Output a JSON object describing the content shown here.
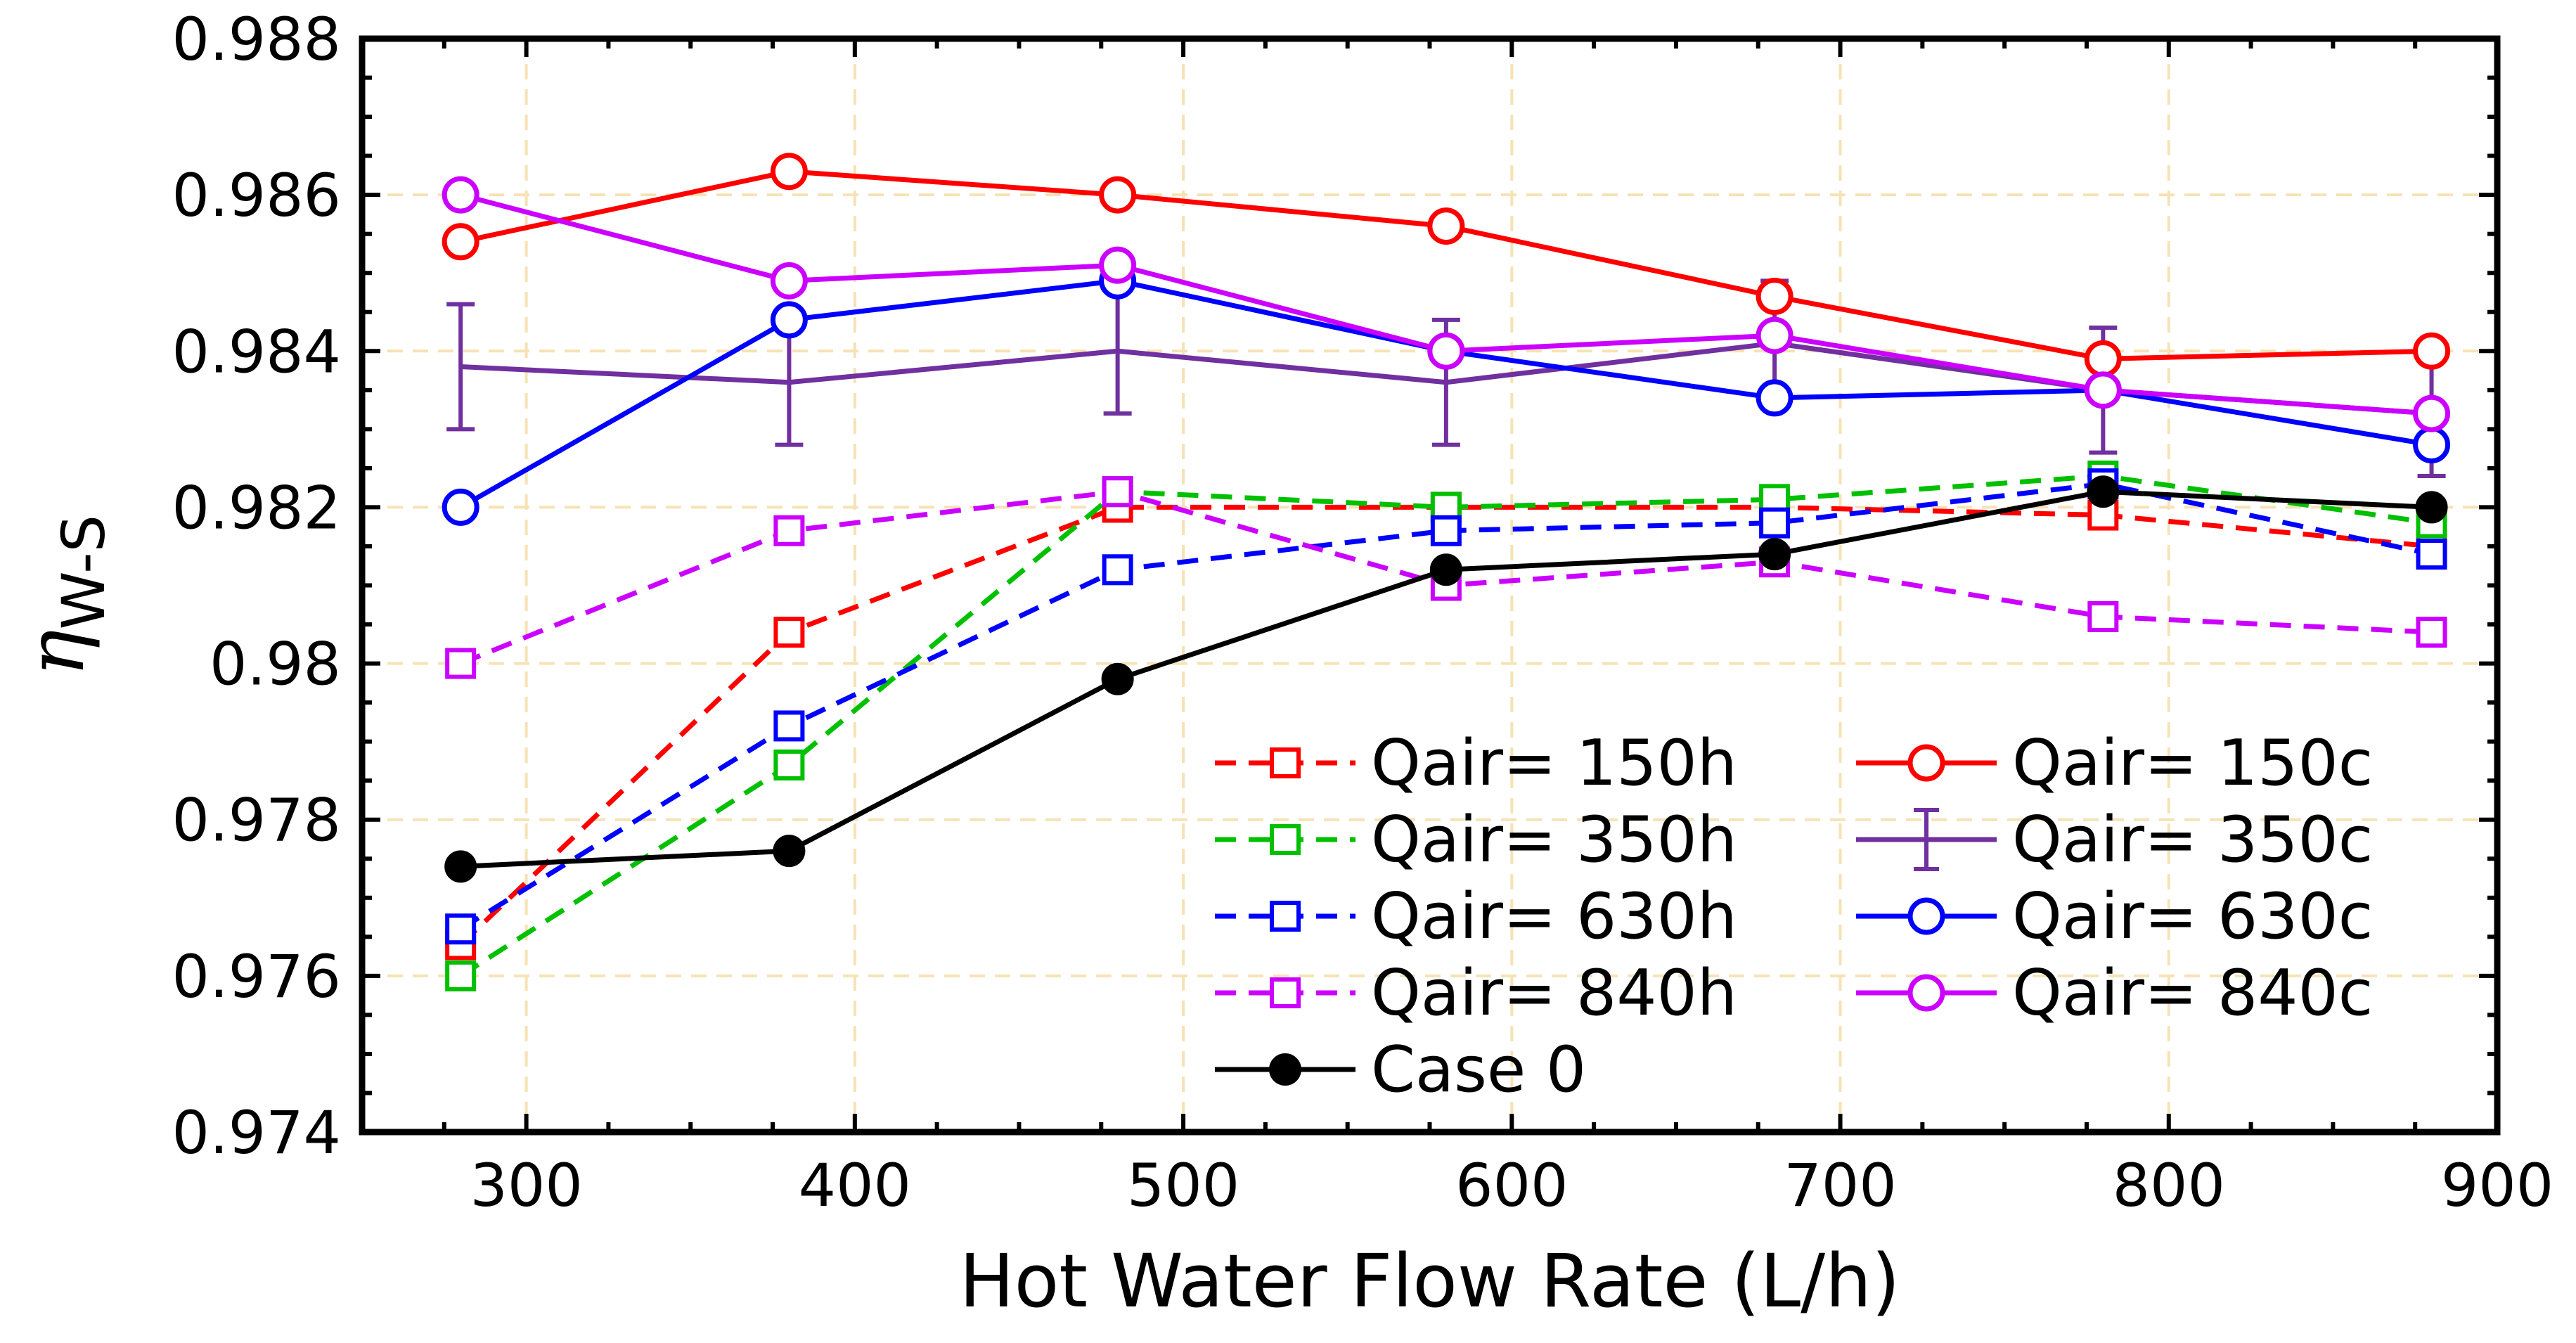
{
  "chart_data": {
    "type": "line",
    "title": "",
    "xlabel": "Hot Water Flow Rate (L/h)",
    "ylabel_symbol": "η",
    "ylabel_subscript": "W-S",
    "xlim": [
      250,
      900
    ],
    "ylim": [
      0.974,
      0.988
    ],
    "xticks": [
      300,
      400,
      500,
      600,
      700,
      800,
      900
    ],
    "xtick_labels": [
      "300",
      "400",
      "500",
      "600",
      "700",
      "800",
      "900"
    ],
    "yticks": [
      0.974,
      0.976,
      0.978,
      0.98,
      0.982,
      0.984,
      0.986,
      0.988
    ],
    "ytick_labels": [
      "0.974",
      "0.976",
      "0.978",
      "0.98",
      "0.982",
      "0.984",
      "0.986",
      "0.988"
    ],
    "grid": true,
    "legend_position": "bottom-right",
    "x": [
      280,
      380,
      480,
      580,
      680,
      780,
      880
    ],
    "series": [
      {
        "name": "Qair= 150h",
        "color": "#ff0000",
        "dash": true,
        "marker": "square",
        "values": [
          0.9764,
          0.9804,
          0.982,
          0.982,
          0.982,
          0.9819,
          0.9815
        ]
      },
      {
        "name": "Qair= 350h",
        "color": "#00c000",
        "dash": true,
        "marker": "square",
        "values": [
          0.976,
          0.9787,
          0.9822,
          0.982,
          0.9821,
          0.9824,
          0.9818
        ]
      },
      {
        "name": "Qair= 630h",
        "color": "#0000ff",
        "dash": true,
        "marker": "square",
        "values": [
          0.9766,
          0.9792,
          0.9812,
          0.9817,
          0.9818,
          0.9823,
          0.9814
        ]
      },
      {
        "name": "Qair= 840h",
        "color": "#cc00ff",
        "dash": true,
        "marker": "square",
        "values": [
          0.98,
          0.9817,
          0.9822,
          0.981,
          0.9813,
          0.9806,
          0.9804
        ]
      },
      {
        "name": "Case 0",
        "color": "#000000",
        "dash": false,
        "marker": "filled-circle",
        "values": [
          0.9774,
          0.9776,
          0.9798,
          0.9812,
          0.9814,
          0.9822,
          0.982
        ]
      },
      {
        "name": "Qair= 150c",
        "color": "#ff0000",
        "dash": false,
        "marker": "circle",
        "values": [
          0.9854,
          0.9863,
          0.986,
          0.9856,
          0.9847,
          0.9839,
          0.984
        ]
      },
      {
        "name": "Qair= 350c",
        "color": "#7030a0",
        "dash": false,
        "marker": "errorbar",
        "values": [
          0.9838,
          0.9836,
          0.984,
          0.9836,
          0.9841,
          0.9835,
          0.9832
        ],
        "errors": [
          0.0008,
          0.0008,
          0.0008,
          0.0008,
          0.0008,
          0.0008,
          0.0008
        ]
      },
      {
        "name": "Qair= 630c",
        "color": "#0000ff",
        "dash": false,
        "marker": "circle",
        "values": [
          0.982,
          0.9844,
          0.9849,
          0.984,
          0.9834,
          0.9835,
          0.9828
        ]
      },
      {
        "name": "Qair= 840c",
        "color": "#cc00ff",
        "dash": false,
        "marker": "circle",
        "values": [
          0.986,
          0.9849,
          0.9851,
          0.984,
          0.9842,
          0.9835,
          0.9832
        ]
      }
    ],
    "legend": {
      "left_column": [
        "Qair= 150h",
        "Qair= 350h",
        "Qair= 630h",
        "Qair= 840h",
        "Case 0"
      ],
      "right_column": [
        "Qair= 150c",
        "Qair= 350c",
        "Qair= 630c",
        "Qair= 840c"
      ]
    }
  }
}
